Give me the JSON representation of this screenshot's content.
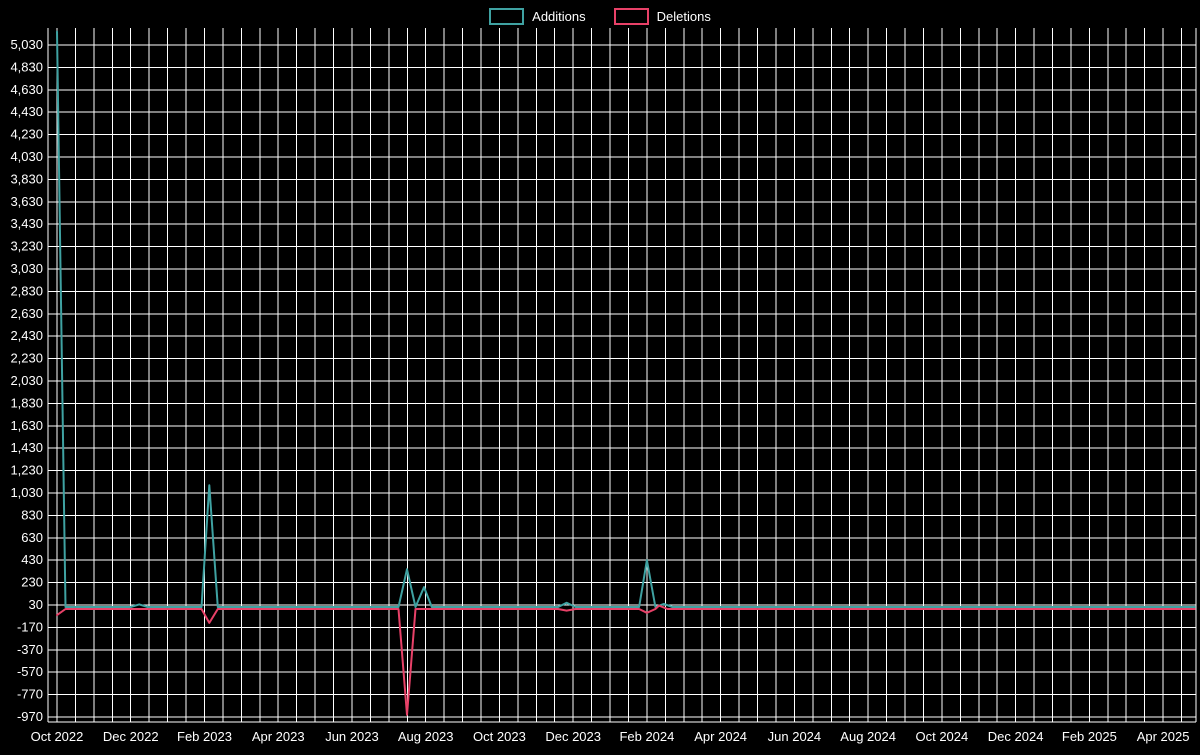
{
  "legend": {
    "items": [
      {
        "label": "Additions",
        "color": "#3fa2a2"
      },
      {
        "label": "Deletions",
        "color": "#e84168"
      }
    ]
  },
  "chart_data": {
    "type": "line",
    "title": "",
    "legend_position": "top",
    "background_color": "#000000",
    "grid_color": "#ffffff",
    "text_color": "#ffffff",
    "grid": true,
    "y_min": -970,
    "y_max": 5030,
    "x_tick_labels": [
      "Oct 2022",
      "Dec 2022",
      "Feb 2023",
      "Apr 2023",
      "Jun 2023",
      "Aug 2023",
      "Oct 2023",
      "Dec 2023",
      "Feb 2024",
      "Apr 2024",
      "Jun 2024",
      "Aug 2024",
      "Oct 2024",
      "Dec 2024",
      "Feb 2025",
      "Apr 2025"
    ],
    "y_tick_labels": [
      "5,030",
      "4,830",
      "4,630",
      "4,430",
      "4,230",
      "4,030",
      "3,830",
      "3,630",
      "3,430",
      "3,230",
      "3,030",
      "2,830",
      "2,630",
      "2,430",
      "2,230",
      "2,030",
      "1,830",
      "1,630",
      "1,430",
      "1,230",
      "1,030",
      "830",
      "630",
      "430",
      "230",
      "30",
      "-170",
      "-370",
      "-570",
      "-770",
      "-970"
    ],
    "series": [
      {
        "name": "Additions",
        "color": "#3fa2a2",
        "points": [
          [
            "2022-10-01",
            5150
          ],
          [
            "2022-10-08",
            12
          ],
          [
            "2022-12-01",
            12
          ],
          [
            "2022-12-08",
            35
          ],
          [
            "2022-12-15",
            12
          ],
          [
            "2023-01-29",
            12
          ],
          [
            "2023-02-05",
            1100
          ],
          [
            "2023-02-12",
            12
          ],
          [
            "2023-07-09",
            12
          ],
          [
            "2023-07-16",
            350
          ],
          [
            "2023-07-23",
            12
          ],
          [
            "2023-07-30",
            190
          ],
          [
            "2023-08-06",
            12
          ],
          [
            "2023-11-19",
            12
          ],
          [
            "2023-11-26",
            50
          ],
          [
            "2023-12-03",
            12
          ],
          [
            "2024-01-25",
            12
          ],
          [
            "2024-02-01",
            430
          ],
          [
            "2024-02-08",
            12
          ],
          [
            "2024-02-15",
            40
          ],
          [
            "2024-02-22",
            12
          ],
          [
            "2025-04-27",
            12
          ]
        ]
      },
      {
        "name": "Deletions",
        "color": "#e84168",
        "points": [
          [
            "2022-10-01",
            -60
          ],
          [
            "2022-10-08",
            -6
          ],
          [
            "2023-01-29",
            -6
          ],
          [
            "2023-02-05",
            -130
          ],
          [
            "2023-02-12",
            -6
          ],
          [
            "2023-07-09",
            -6
          ],
          [
            "2023-07-16",
            -950
          ],
          [
            "2023-07-23",
            -6
          ],
          [
            "2023-11-19",
            -6
          ],
          [
            "2023-11-26",
            -20
          ],
          [
            "2023-12-03",
            -6
          ],
          [
            "2024-01-25",
            -6
          ],
          [
            "2024-02-01",
            -40
          ],
          [
            "2024-02-08",
            -6
          ],
          [
            "2024-02-11",
            25
          ],
          [
            "2024-02-18",
            -6
          ],
          [
            "2025-04-27",
            -6
          ]
        ]
      }
    ]
  }
}
